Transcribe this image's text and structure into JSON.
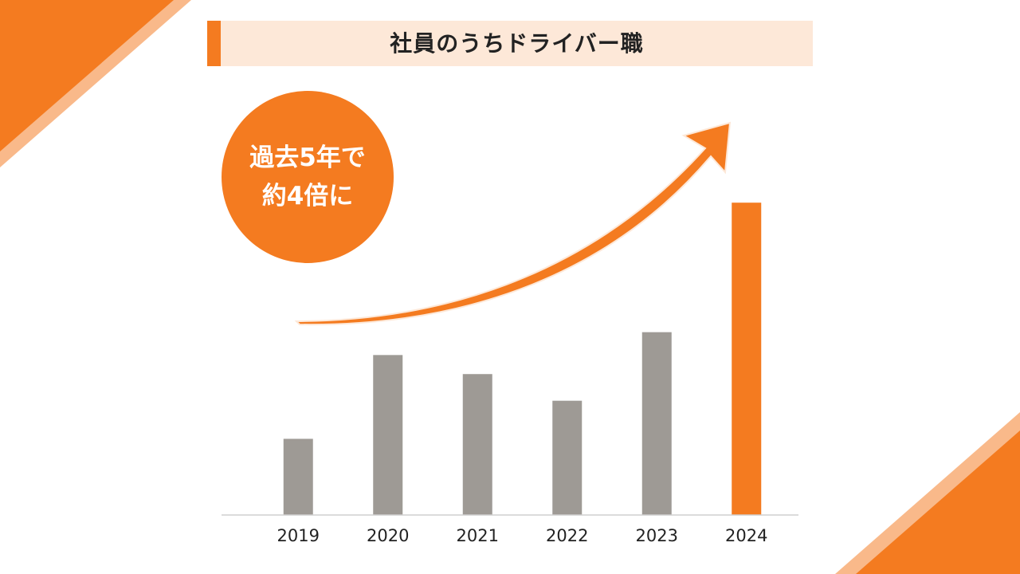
{
  "title": "社員のうちドライバー職",
  "badge": {
    "line1": "過去5年で",
    "line2": "約4倍に"
  },
  "colors": {
    "accent": "#f47b20",
    "accent_light": "#fde8d8",
    "accent_pale": "#f9b98a",
    "bar_default": "#9e9a95",
    "bar_highlight": "#f47b20",
    "axis": "#cfcfcf"
  },
  "chart_data": {
    "type": "bar",
    "title": "",
    "xlabel": "",
    "ylabel": "",
    "categories": [
      "2019",
      "2020",
      "2021",
      "2022",
      "2023",
      "2024"
    ],
    "values": [
      1.0,
      2.1,
      1.85,
      1.5,
      2.4,
      4.1
    ],
    "highlight_index": 5,
    "ylim": [
      0,
      4.5
    ],
    "grid": false,
    "legend": "none",
    "y_axis_visible": false
  }
}
